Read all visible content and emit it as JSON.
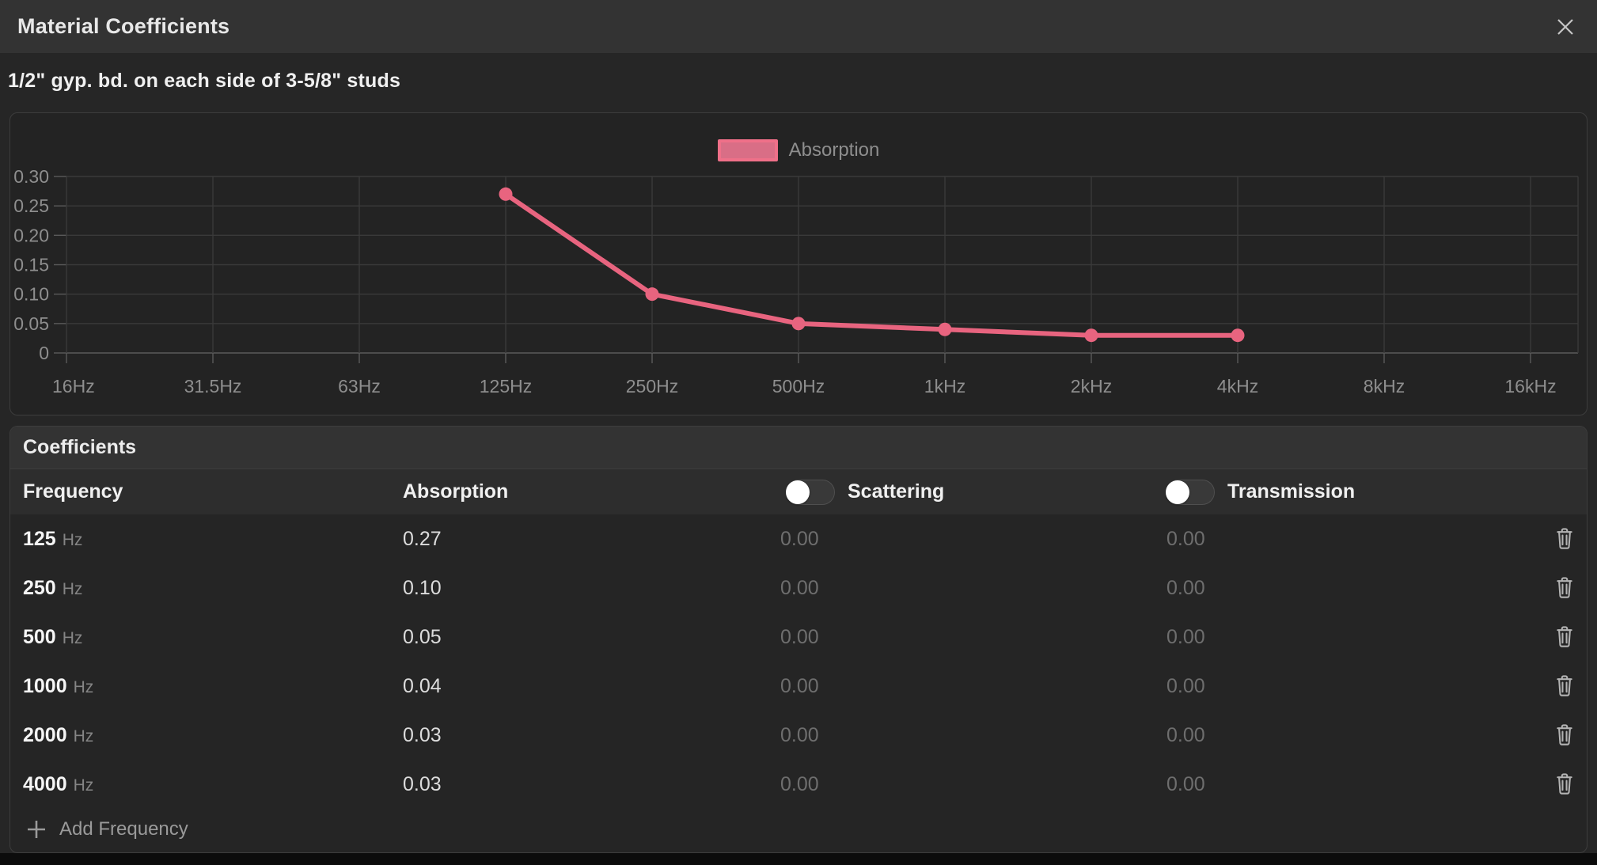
{
  "dialog": {
    "title": "Material Coefficients",
    "subtitle": "1/2\" gyp. bd. on each side of 3-5/8\" studs"
  },
  "chart_data": {
    "type": "line",
    "title": "",
    "xlabel": "",
    "ylabel": "",
    "categories": [
      "16Hz",
      "31.5Hz",
      "63Hz",
      "125Hz",
      "250Hz",
      "500Hz",
      "1kHz",
      "2kHz",
      "4kHz",
      "8kHz",
      "16kHz"
    ],
    "y_ticks": [
      0.3,
      0.25,
      0.2,
      0.15,
      0.1,
      0.05,
      0
    ],
    "y_tick_labels": [
      "0.30",
      "0.25",
      "0.20",
      "0.15",
      "0.10",
      "0.05",
      "0"
    ],
    "ylim": [
      0,
      0.3
    ],
    "grid": true,
    "legend_position": "top-center",
    "legend": [
      {
        "label": "Absorption",
        "color": "#e8647f"
      }
    ],
    "series": [
      {
        "name": "Absorption",
        "color": "#e8647f",
        "points": [
          {
            "x": "125Hz",
            "y": 0.27
          },
          {
            "x": "250Hz",
            "y": 0.1
          },
          {
            "x": "500Hz",
            "y": 0.05
          },
          {
            "x": "1kHz",
            "y": 0.04
          },
          {
            "x": "2kHz",
            "y": 0.03
          },
          {
            "x": "4kHz",
            "y": 0.03
          }
        ]
      }
    ]
  },
  "table": {
    "section_title": "Coefficients",
    "columns": {
      "frequency": "Frequency",
      "absorption": "Absorption",
      "scattering": "Scattering",
      "transmission": "Transmission"
    },
    "scattering_enabled": false,
    "transmission_enabled": false,
    "rows": [
      {
        "frequency": "125",
        "unit": "Hz",
        "absorption": "0.27",
        "scattering": "0.00",
        "transmission": "0.00"
      },
      {
        "frequency": "250",
        "unit": "Hz",
        "absorption": "0.10",
        "scattering": "0.00",
        "transmission": "0.00"
      },
      {
        "frequency": "500",
        "unit": "Hz",
        "absorption": "0.05",
        "scattering": "0.00",
        "transmission": "0.00"
      },
      {
        "frequency": "1000",
        "unit": "Hz",
        "absorption": "0.04",
        "scattering": "0.00",
        "transmission": "0.00"
      },
      {
        "frequency": "2000",
        "unit": "Hz",
        "absorption": "0.03",
        "scattering": "0.00",
        "transmission": "0.00"
      },
      {
        "frequency": "4000",
        "unit": "Hz",
        "absorption": "0.03",
        "scattering": "0.00",
        "transmission": "0.00"
      }
    ],
    "add_button_label": "Add Frequency"
  },
  "colors": {
    "accent_line": "#e8647f",
    "legend_fill": "#d96e86",
    "legend_border": "#ef7089",
    "grid_line": "#3a3a3a",
    "axis_line": "#5a5a5a",
    "tick_label": "#8e8e8e",
    "titlebar_bg": "#333333",
    "dialog_bg": "#262626"
  }
}
